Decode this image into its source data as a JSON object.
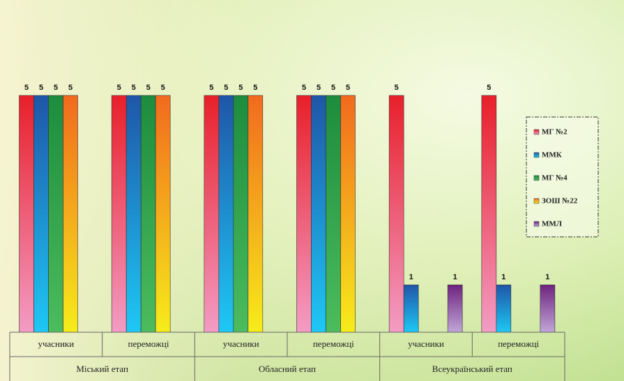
{
  "chart_data": {
    "type": "bar",
    "categories": [
      "учасники",
      "переможці",
      "учасники",
      "переможці",
      "учасники",
      "переможці"
    ],
    "category_groups": [
      "Міський етап",
      "Обласний етап",
      "Всеукраїнський етап"
    ],
    "series": [
      {
        "name": "МГ №2",
        "color": "#e8202a",
        "gradient_to": "#f39cc4",
        "values": [
          5,
          5,
          5,
          5,
          5,
          5
        ]
      },
      {
        "name": "ММК",
        "color": "#1f56a8",
        "gradient_to": "#1ec8f4",
        "values": [
          5,
          5,
          5,
          5,
          1,
          1
        ]
      },
      {
        "name": "МГ №4",
        "color": "#1d8c3e",
        "gradient_to": "#4cbc5e",
        "values": [
          5,
          5,
          5,
          5,
          null,
          null
        ]
      },
      {
        "name": "ЗОШ №22",
        "color": "#f26a1e",
        "gradient_to": "#f6ec1a",
        "values": [
          5,
          5,
          5,
          5,
          null,
          null
        ]
      },
      {
        "name": "ММЛ",
        "color": "#6e237e",
        "gradient_to": "#c0a6d8",
        "values": [
          null,
          null,
          null,
          null,
          1,
          1
        ]
      }
    ]
  }
}
